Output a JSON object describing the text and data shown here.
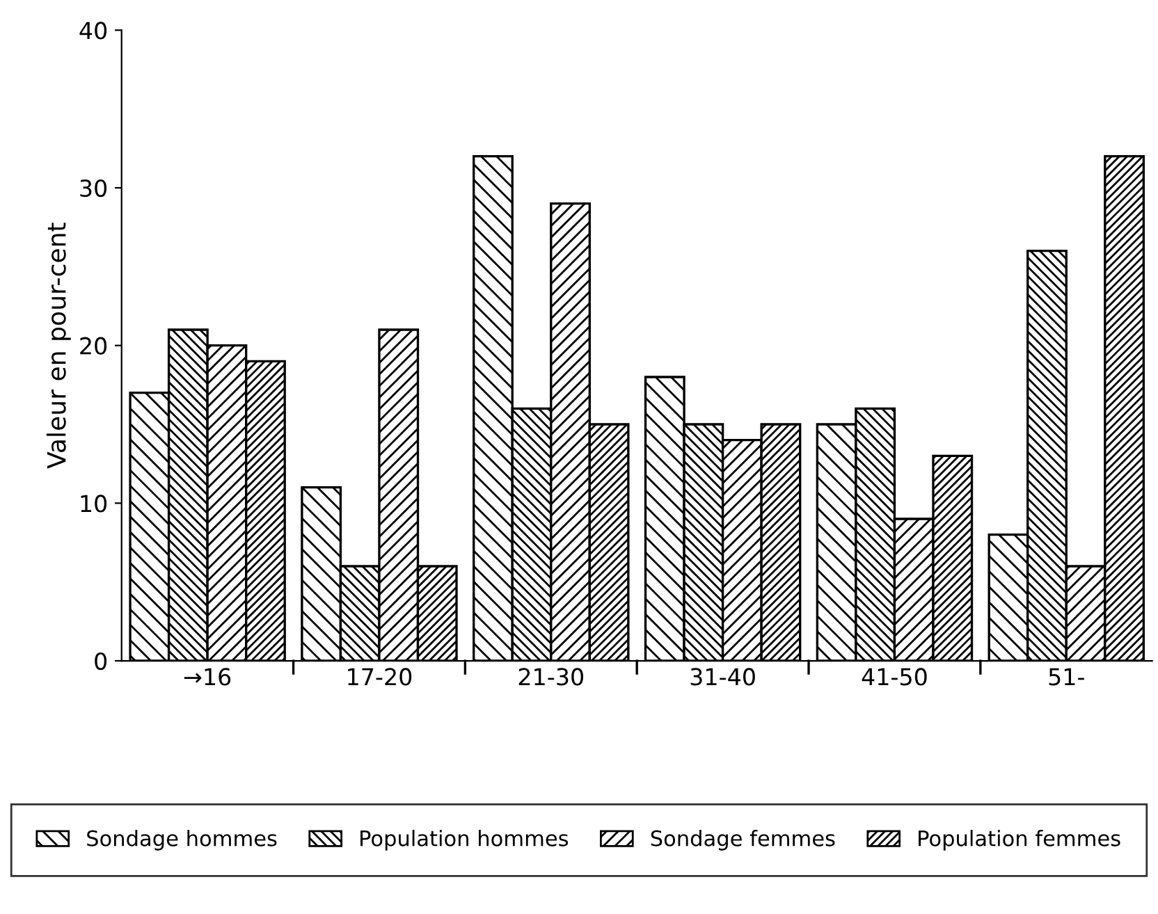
{
  "chart_data": {
    "type": "bar",
    "ylabel": "Valeur en pour-cent",
    "categories": [
      "→16",
      "17-20",
      "21-30",
      "31-40",
      "41-50",
      "51-"
    ],
    "series": [
      {
        "name": "Sondage hommes",
        "color": "#000000",
        "values": [
          17,
          11,
          32,
          18,
          15,
          8
        ]
      },
      {
        "name": "Population hommes",
        "color": "#000000",
        "values": [
          21,
          6,
          16,
          15,
          16,
          26
        ]
      },
      {
        "name": "Sondage femmes",
        "color": "#000000",
        "values": [
          20,
          21,
          29,
          14,
          9,
          6
        ]
      },
      {
        "name": "Population femmes",
        "color": "#000000",
        "values": [
          19,
          6,
          15,
          15,
          13,
          32
        ]
      }
    ],
    "ylim": [
      0,
      40
    ],
    "yticks": [
      0,
      10,
      20,
      30,
      40
    ],
    "grid": false,
    "legend": "bottom"
  }
}
